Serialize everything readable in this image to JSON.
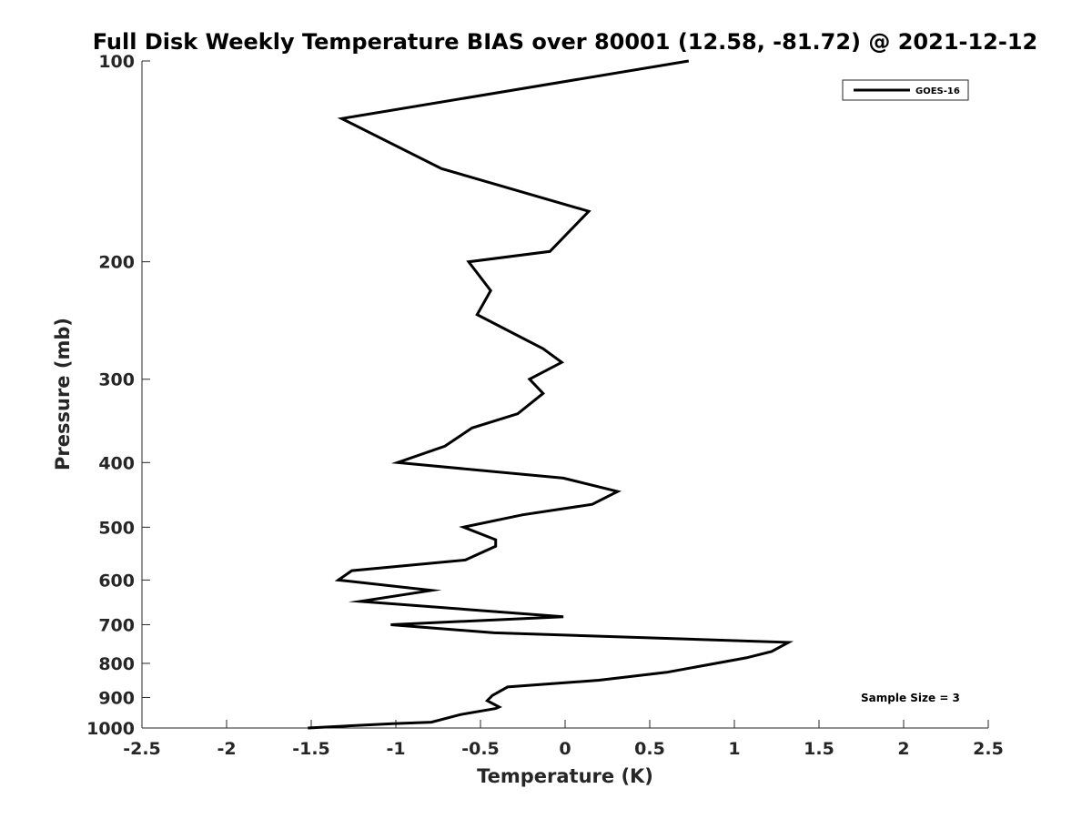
{
  "chart_data": {
    "type": "line",
    "title": "Full Disk Weekly Temperature BIAS over 80001 (12.58, -81.72) @ 2021-12-12",
    "xlabel": "Temperature (K)",
    "ylabel": "Pressure (mb)",
    "xlim": [
      -2.5,
      2.5
    ],
    "ylim": [
      1000,
      100
    ],
    "yscale": "log",
    "y_reversed": true,
    "grid": false,
    "x_ticks": [
      -2.5,
      -2,
      -1.5,
      -1,
      -0.5,
      0,
      0.5,
      1,
      1.5,
      2,
      2.5
    ],
    "x_tick_labels": [
      "-2.5",
      "-2",
      "-1.5",
      "-1",
      "-0.5",
      "0",
      "0.5",
      "1",
      "1.5",
      "2",
      "2.5"
    ],
    "y_ticks": [
      100,
      200,
      300,
      400,
      500,
      600,
      700,
      800,
      900,
      1000
    ],
    "y_tick_labels": [
      "100",
      "200",
      "300",
      "400",
      "500",
      "600",
      "700",
      "800",
      "900",
      "1000"
    ],
    "legend": {
      "position": "top-right",
      "entries": [
        "GOES-16"
      ]
    },
    "annotation": "Sample Size = 3",
    "series": [
      {
        "name": "GOES-16",
        "color": "#000000",
        "points": [
          [
            0.73,
            100
          ],
          [
            -1.32,
            122
          ],
          [
            -0.73,
            145
          ],
          [
            0.14,
            168
          ],
          [
            -0.09,
            193
          ],
          [
            -0.57,
            200
          ],
          [
            -0.44,
            221
          ],
          [
            -0.52,
            240
          ],
          [
            -0.13,
            270
          ],
          [
            -0.02,
            283
          ],
          [
            -0.21,
            300
          ],
          [
            -0.13,
            315
          ],
          [
            -0.28,
            338
          ],
          [
            -0.55,
            355
          ],
          [
            -0.71,
            378
          ],
          [
            -0.99,
            400
          ],
          [
            -0.01,
            422
          ],
          [
            0.31,
            442
          ],
          [
            0.16,
            462
          ],
          [
            -0.25,
            479
          ],
          [
            -0.6,
            500
          ],
          [
            -0.41,
            522
          ],
          [
            -0.41,
            534
          ],
          [
            -0.59,
            560
          ],
          [
            -1.26,
            581
          ],
          [
            -1.34,
            600
          ],
          [
            -0.79,
            622
          ],
          [
            -1.21,
            646
          ],
          [
            -0.01,
            681
          ],
          [
            -1.03,
            700
          ],
          [
            -0.42,
            720
          ],
          [
            1.32,
            744
          ],
          [
            1.22,
            768
          ],
          [
            1.07,
            785
          ],
          [
            0.6,
            825
          ],
          [
            0.2,
            848
          ],
          [
            -0.34,
            868
          ],
          [
            -0.43,
            894
          ],
          [
            -0.46,
            910
          ],
          [
            -0.39,
            930
          ],
          [
            -0.41,
            935
          ],
          [
            -0.62,
            955
          ],
          [
            -0.79,
            980
          ],
          [
            -1.02,
            985
          ],
          [
            -1.52,
            1000
          ]
        ]
      }
    ]
  }
}
